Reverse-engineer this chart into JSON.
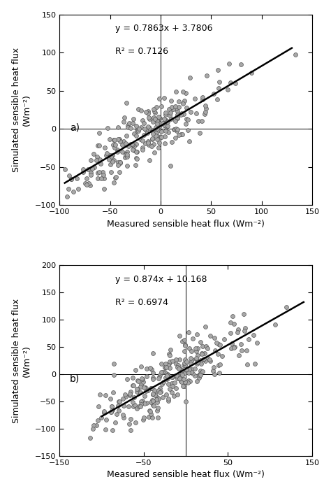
{
  "panel_a": {
    "slope": 0.7863,
    "intercept": 3.7806,
    "r2": 0.7126,
    "equation": "y = 0.7863x + 3.7806",
    "r2_label": "R² = 0.7126",
    "label": "a)",
    "xlim": [
      -100,
      150
    ],
    "ylim": [
      -100,
      150
    ],
    "xticks": [
      -100,
      -50,
      0,
      50,
      100,
      150
    ],
    "yticks": [
      -100,
      -50,
      0,
      50,
      100,
      150
    ],
    "seed": 42,
    "n_points": 260,
    "line_x_start": -95,
    "line_x_end": 130
  },
  "panel_b": {
    "slope": 0.874,
    "intercept": 10.168,
    "r2": 0.6974,
    "equation": "y = 0.874x + 10.168",
    "r2_label": "R² = 0.6974",
    "label": "b)",
    "xlim": [
      -150,
      150
    ],
    "ylim": [
      -150,
      200
    ],
    "xticks": [
      -150,
      -50,
      50,
      150
    ],
    "yticks": [
      -150,
      -100,
      -50,
      0,
      50,
      100,
      150,
      200
    ],
    "seed": 77,
    "n_points": 290,
    "line_x_start": -100,
    "line_x_end": 140
  },
  "marker_color": "#a8a8a8",
  "marker_edge_color": "#555555",
  "marker_size": 18,
  "marker_linewidth": 0.5,
  "line_color": "#000000",
  "line_width": 1.8,
  "font_size_axis_label": 9,
  "font_size_eq": 9,
  "font_size_panel_label": 10,
  "font_size_tick": 8,
  "xlabel": "Measured sensible heat flux (Wm⁻²)",
  "ylabel_top": "Simulated sensible heat flux",
  "ylabel_bottom": "(Wm⁻²)"
}
